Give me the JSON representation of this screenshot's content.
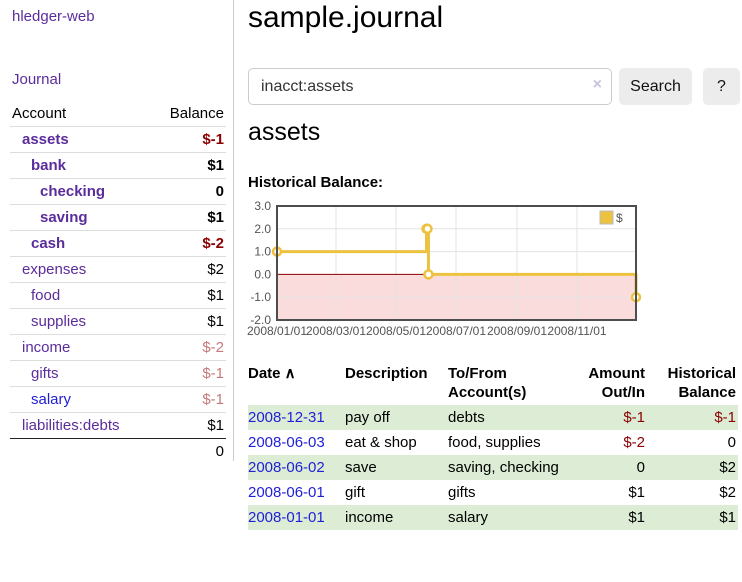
{
  "colors": {
    "link_purple": "#5b2d9b",
    "link_blue": "#1f1fd6",
    "negative_dark_red": "#8b0000",
    "negative_light_red": "#c47979",
    "row_stripe_green": "#ddedd5",
    "button_gray": "#ececec",
    "chart_gold": "#edc240"
  },
  "sidebar": {
    "app_title": "hledger-web",
    "nav_journal": "Journal",
    "accounts": {
      "header_account": "Account",
      "header_balance": "Balance",
      "rows": [
        {
          "name": "assets",
          "balance": "$-1",
          "level": 1,
          "bold": true,
          "name_color": "purple",
          "balance_color": "negdark"
        },
        {
          "name": "bank",
          "balance": "$1",
          "level": 2,
          "bold": true,
          "name_color": "purple",
          "balance_color": "normal"
        },
        {
          "name": "checking",
          "balance": "0",
          "level": 3,
          "bold": true,
          "name_color": "purple",
          "balance_color": "normal"
        },
        {
          "name": "saving",
          "balance": "$1",
          "level": 3,
          "bold": true,
          "name_color": "purple",
          "balance_color": "normal"
        },
        {
          "name": "cash",
          "balance": "$-2",
          "level": 2,
          "bold": true,
          "name_color": "purple",
          "balance_color": "negdark"
        },
        {
          "name": "expenses",
          "balance": "$2",
          "level": 1,
          "bold": false,
          "name_color": "purple",
          "balance_color": "normal"
        },
        {
          "name": "food",
          "balance": "$1",
          "level": 2,
          "bold": false,
          "name_color": "purple",
          "balance_color": "normal"
        },
        {
          "name": "supplies",
          "balance": "$1",
          "level": 2,
          "bold": false,
          "name_color": "purple",
          "balance_color": "normal"
        },
        {
          "name": "income",
          "balance": "$-2",
          "level": 1,
          "bold": false,
          "name_color": "purple",
          "balance_color": "neglight"
        },
        {
          "name": "gifts",
          "balance": "$-1",
          "level": 2,
          "bold": false,
          "name_color": "purple",
          "balance_color": "neglight"
        },
        {
          "name": "salary",
          "balance": "$-1",
          "level": 2,
          "bold": false,
          "name_color": "blue",
          "balance_color": "neglight"
        },
        {
          "name": "liabilities:debts",
          "balance": "$1",
          "level": 1,
          "bold": false,
          "name_color": "purple",
          "balance_color": "normal"
        }
      ],
      "total": "0"
    }
  },
  "main": {
    "title": "sample.journal",
    "search": {
      "value": "inacct:assets",
      "clear_icon": "×",
      "button_label": "Search",
      "help_label": "?"
    },
    "account_heading": "assets",
    "chart_label": "Historical Balance:"
  },
  "chart_data": {
    "type": "line",
    "line_style": "step-after",
    "title": "Historical Balance:",
    "series": [
      {
        "name": "$",
        "color": "#edc240",
        "points": [
          {
            "date": "2008-01-01",
            "value": 1
          },
          {
            "date": "2008-06-01",
            "value": 2
          },
          {
            "date": "2008-06-02",
            "value": 2
          },
          {
            "date": "2008-06-03",
            "value": 0
          },
          {
            "date": "2008-12-31",
            "value": -1
          }
        ]
      }
    ],
    "x_range": [
      "2008-01-01",
      "2008-12-31"
    ],
    "ylim": [
      -2,
      3
    ],
    "y_ticks": [
      {
        "v": 3,
        "label": "3.0"
      },
      {
        "v": 2,
        "label": "2.0"
      },
      {
        "v": 1,
        "label": "1.0"
      },
      {
        "v": 0,
        "label": "0.0"
      },
      {
        "v": -1,
        "label": "-1.0"
      },
      {
        "v": -2,
        "label": "-2.0"
      }
    ],
    "x_ticks": [
      {
        "date": "2008-01-01",
        "label": "2008/01/01"
      },
      {
        "date": "2008-03-01",
        "label": "2008/03/01"
      },
      {
        "date": "2008-05-01",
        "label": "2008/05/01"
      },
      {
        "date": "2008-07-01",
        "label": "2008/07/01"
      },
      {
        "date": "2008-09-01",
        "label": "2008/09/01"
      },
      {
        "date": "2008-11-01",
        "label": "2008/11/01"
      }
    ],
    "x_gridlines": [
      "2008-03-01",
      "2008-05-01",
      "2008-07-01",
      "2008-09-01",
      "2008-11-01"
    ],
    "grid": true,
    "legend": {
      "label": "$",
      "position": "top-right"
    },
    "negative_region_fill": "#fbdcdc",
    "zero_line_color": "#8b0000"
  },
  "register": {
    "headers": [
      {
        "lines": [
          "Date"
        ],
        "align": "left",
        "sort_icon": "∧"
      },
      {
        "lines": [
          "Description"
        ],
        "align": "left"
      },
      {
        "lines": [
          "To/From",
          "Account(s)"
        ],
        "align": "left"
      },
      {
        "lines": [
          "Amount",
          "Out/In"
        ],
        "align": "right"
      },
      {
        "lines": [
          "Historical",
          "Balance"
        ],
        "align": "right"
      }
    ],
    "rows": [
      {
        "date": "2008-12-31",
        "description": "pay off",
        "accounts": "debts",
        "amount": "$-1",
        "amount_color": "negdark",
        "balance": "$-1",
        "balance_color": "negdark"
      },
      {
        "date": "2008-06-03",
        "description": "eat & shop",
        "accounts": "food, supplies",
        "amount": "$-2",
        "amount_color": "negdark",
        "balance": "0",
        "balance_color": "normal"
      },
      {
        "date": "2008-06-02",
        "description": "save",
        "accounts": "saving, checking",
        "amount": "0",
        "amount_color": "normal",
        "balance": "$2",
        "balance_color": "normal"
      },
      {
        "date": "2008-06-01",
        "description": "gift",
        "accounts": "gifts",
        "amount": "$1",
        "amount_color": "normal",
        "balance": "$2",
        "balance_color": "normal"
      },
      {
        "date": "2008-01-01",
        "description": "income",
        "accounts": "salary",
        "amount": "$1",
        "amount_color": "normal",
        "balance": "$1",
        "balance_color": "normal"
      }
    ]
  }
}
